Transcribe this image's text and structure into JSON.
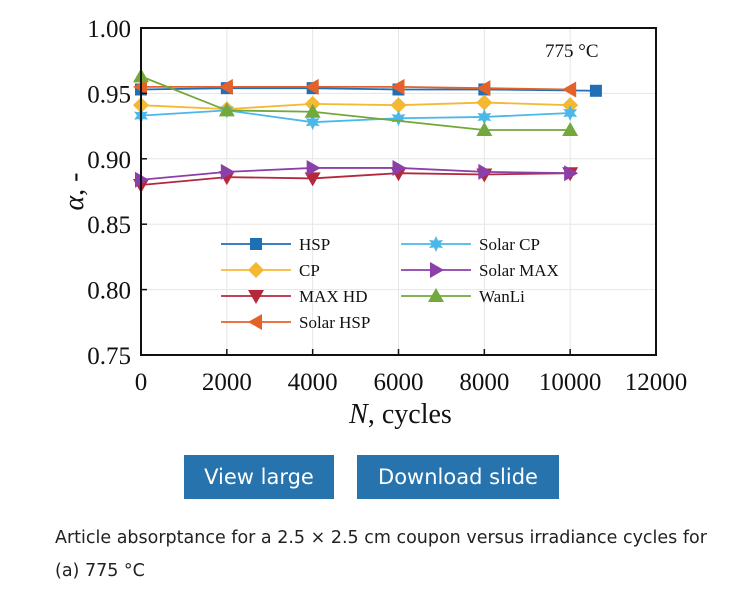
{
  "chart_data": {
    "type": "line",
    "title": "",
    "annotation": "775 °C",
    "xlabel": "N, cycles",
    "ylabel": "α, -",
    "xlim": [
      0,
      12000
    ],
    "ylim": [
      0.75,
      1.0
    ],
    "xticks": [
      "0",
      "2000",
      "4000",
      "6000",
      "8000",
      "10000",
      "12000"
    ],
    "yticks": [
      "0.75",
      "0.80",
      "0.85",
      "0.90",
      "0.95",
      "1.00"
    ],
    "grid": true,
    "legend_position": "bottom-center",
    "series": [
      {
        "name": "HSP",
        "color": "#1f6fb5",
        "marker": "square",
        "x": [
          0,
          2000,
          4000,
          6000,
          8000,
          10600
        ],
        "y": [
          0.953,
          0.954,
          0.954,
          0.953,
          0.953,
          0.952
        ]
      },
      {
        "name": "CP",
        "color": "#f5b833",
        "marker": "diamond",
        "x": [
          0,
          2000,
          4000,
          6000,
          8000,
          10000
        ],
        "y": [
          0.941,
          0.938,
          0.942,
          0.941,
          0.943,
          0.941
        ]
      },
      {
        "name": "MAX HD",
        "color": "#b5283c",
        "marker": "triangle-down",
        "x": [
          0,
          2000,
          4000,
          6000,
          8000,
          10000
        ],
        "y": [
          0.88,
          0.886,
          0.885,
          0.889,
          0.888,
          0.889
        ]
      },
      {
        "name": "Solar HSP",
        "color": "#e4622a",
        "marker": "triangle-left",
        "x": [
          0,
          2000,
          4000,
          6000,
          8000,
          10000
        ],
        "y": [
          0.955,
          0.955,
          0.955,
          0.955,
          0.954,
          0.953
        ]
      },
      {
        "name": "Solar CP",
        "color": "#4ab8e8",
        "marker": "star",
        "x": [
          0,
          2000,
          4000,
          6000,
          8000,
          10000
        ],
        "y": [
          0.933,
          0.937,
          0.928,
          0.931,
          0.932,
          0.935
        ]
      },
      {
        "name": "Solar MAX",
        "color": "#8b3fa8",
        "marker": "triangle-right",
        "x": [
          0,
          2000,
          4000,
          6000,
          8000,
          10000
        ],
        "y": [
          0.884,
          0.89,
          0.893,
          0.893,
          0.89,
          0.889
        ]
      },
      {
        "name": "WanLi",
        "color": "#72a83c",
        "marker": "triangle-up",
        "x": [
          0,
          2000,
          4000,
          8000,
          10000
        ],
        "y": [
          0.963,
          0.937,
          0.936,
          0.922,
          0.922
        ]
      }
    ]
  },
  "buttons": {
    "view_large": "View large",
    "download_slide": "Download slide"
  },
  "caption": "Article absorptance for a 2.5 × 2.5 cm coupon versus irradiance cycles for (a) 775 °C"
}
